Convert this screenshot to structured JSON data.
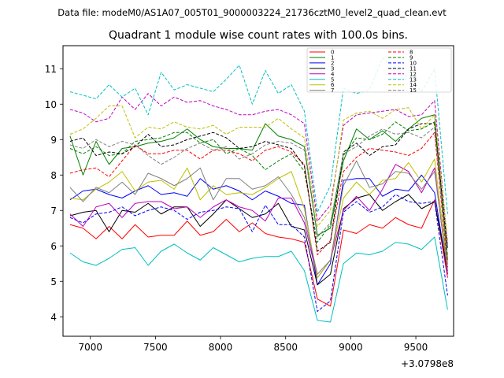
{
  "chart_data": {
    "type": "line",
    "suptitle": "Data file: modeM0/AS1A07_005T01_9000003224_21736cztM0_level2_quad_clean.evt",
    "title": "Quadrant 1 module wise count rates with 100.0s bins.",
    "xlabel": "",
    "ylabel": "",
    "x_offset_label": "+3.0798e8",
    "xlim": [
      6790,
      9790
    ],
    "ylim": [
      3.45,
      11.65
    ],
    "xticks": [
      7000,
      7500,
      8000,
      8500,
      9000,
      9500
    ],
    "yticks": [
      4,
      5,
      6,
      7,
      8,
      9,
      10,
      11
    ],
    "grid": false,
    "legend_position": "top-right",
    "x": [
      6844,
      6944,
      7044,
      7144,
      7244,
      7344,
      7444,
      7544,
      7644,
      7744,
      7844,
      7944,
      8044,
      8144,
      8244,
      8344,
      8444,
      8544,
      8644,
      8744,
      8844,
      8944,
      9044,
      9144,
      9244,
      9344,
      9444,
      9544,
      9644,
      9744
    ],
    "series": [
      {
        "name": "0",
        "color": "#ff0000",
        "dash": false,
        "values": [
          6.6,
          6.5,
          6.2,
          6.55,
          6.2,
          6.6,
          6.25,
          6.3,
          6.3,
          6.7,
          6.3,
          6.4,
          6.75,
          6.4,
          6.65,
          6.35,
          6.25,
          6.2,
          6.1,
          4.5,
          4.3,
          6.45,
          6.35,
          6.6,
          6.5,
          6.8,
          6.6,
          6.5,
          7.3,
          5.1
        ]
      },
      {
        "name": "1",
        "color": "#008000",
        "dash": false,
        "values": [
          9.1,
          8.0,
          8.95,
          8.3,
          8.75,
          8.8,
          8.9,
          8.95,
          9.05,
          9.3,
          9.0,
          8.8,
          8.75,
          8.75,
          8.7,
          9.45,
          9.1,
          9.0,
          8.8,
          6.3,
          6.5,
          8.4,
          9.3,
          9.0,
          9.25,
          8.95,
          9.3,
          9.6,
          9.7,
          5.6
        ]
      },
      {
        "name": "2",
        "color": "#0000ff",
        "dash": false,
        "values": [
          7.3,
          7.55,
          7.6,
          7.45,
          7.35,
          7.55,
          7.7,
          7.45,
          7.5,
          7.4,
          7.9,
          7.6,
          7.7,
          7.55,
          7.3,
          7.55,
          7.4,
          7.2,
          7.15,
          4.9,
          5.5,
          7.85,
          7.9,
          7.9,
          7.4,
          7.6,
          7.55,
          8.0,
          7.5,
          5.2
        ]
      },
      {
        "name": "3",
        "color": "#000000",
        "dash": false,
        "values": [
          6.85,
          6.95,
          7.0,
          6.4,
          7.0,
          6.95,
          7.2,
          6.9,
          7.1,
          7.1,
          6.55,
          6.9,
          7.3,
          7.05,
          6.8,
          6.9,
          7.2,
          6.55,
          6.45,
          4.9,
          5.2,
          7.05,
          7.35,
          7.45,
          7.0,
          7.25,
          7.45,
          7.05,
          7.25,
          5.3
        ]
      },
      {
        "name": "4",
        "color": "#bf00bf",
        "dash": false,
        "values": [
          6.9,
          6.55,
          7.1,
          7.2,
          6.8,
          7.2,
          7.25,
          7.25,
          7.05,
          7.1,
          6.8,
          7.1,
          7.3,
          7.1,
          7.0,
          6.7,
          7.35,
          7.35,
          6.65,
          5.1,
          5.6,
          7.0,
          7.4,
          7.0,
          7.6,
          8.3,
          8.1,
          7.5,
          8.2,
          5.2
        ]
      },
      {
        "name": "5",
        "color": "#00bfbf",
        "dash": false,
        "values": [
          5.8,
          5.55,
          5.45,
          5.65,
          5.9,
          5.95,
          5.45,
          5.85,
          6.05,
          5.8,
          5.6,
          5.95,
          5.75,
          5.55,
          5.65,
          5.7,
          5.7,
          5.85,
          5.3,
          3.9,
          3.85,
          5.5,
          5.8,
          5.75,
          5.85,
          6.1,
          6.05,
          5.9,
          6.25,
          4.2
        ]
      },
      {
        "name": "6",
        "color": "#bfbf00",
        "dash": false,
        "values": [
          7.35,
          7.3,
          7.6,
          7.8,
          8.1,
          7.55,
          7.8,
          7.85,
          7.6,
          8.2,
          7.3,
          7.7,
          7.45,
          7.5,
          7.45,
          7.65,
          7.9,
          8.1,
          7.05,
          5.1,
          5.6,
          7.35,
          7.8,
          7.45,
          7.85,
          7.9,
          8.35,
          7.8,
          8.45,
          5.4
        ]
      },
      {
        "name": "7",
        "color": "#808080",
        "dash": false,
        "values": [
          7.65,
          7.25,
          7.65,
          7.5,
          7.8,
          7.45,
          8.05,
          7.9,
          7.7,
          7.9,
          8.2,
          7.3,
          7.9,
          7.9,
          7.6,
          7.7,
          7.95,
          7.45,
          6.8,
          5.2,
          5.6,
          7.7,
          8.4,
          7.65,
          7.75,
          8.1,
          8.05,
          7.6,
          8.1,
          5.3
        ]
      },
      {
        "name": "8",
        "color": "#ff0000",
        "dash": true,
        "values": [
          8.05,
          8.15,
          8.2,
          7.95,
          8.4,
          8.85,
          8.6,
          8.6,
          8.7,
          8.7,
          8.45,
          8.7,
          8.7,
          8.6,
          8.4,
          8.7,
          8.8,
          8.65,
          8.3,
          5.75,
          6.15,
          8.1,
          8.5,
          8.75,
          8.7,
          8.65,
          8.55,
          8.75,
          9.2,
          5.4
        ]
      },
      {
        "name": "9",
        "color": "#008000",
        "dash": true,
        "values": [
          8.75,
          8.6,
          8.8,
          8.55,
          8.6,
          8.95,
          9.0,
          9.05,
          9.2,
          9.2,
          8.9,
          9.0,
          8.6,
          8.75,
          8.55,
          8.15,
          8.4,
          8.6,
          8.1,
          6.1,
          6.6,
          8.55,
          9.05,
          9.0,
          9.15,
          9.5,
          9.25,
          9.3,
          9.5,
          5.7
        ]
      },
      {
        "name": "10",
        "color": "#0000ff",
        "dash": true,
        "values": [
          6.8,
          6.65,
          6.9,
          6.95,
          7.1,
          6.85,
          7.0,
          7.1,
          7.0,
          6.75,
          6.95,
          7.0,
          7.1,
          7.05,
          6.4,
          7.15,
          6.6,
          6.6,
          6.25,
          4.15,
          4.45,
          6.95,
          7.25,
          6.95,
          7.1,
          7.45,
          7.25,
          7.2,
          7.25,
          4.6
        ]
      },
      {
        "name": "11",
        "color": "#000000",
        "dash": true,
        "values": [
          8.95,
          9.05,
          8.55,
          8.65,
          8.6,
          8.8,
          9.15,
          8.8,
          8.85,
          9.0,
          9.1,
          9.2,
          9.05,
          8.75,
          8.8,
          8.95,
          8.85,
          8.75,
          8.25,
          5.85,
          6.1,
          8.65,
          8.9,
          8.55,
          8.8,
          8.85,
          9.3,
          9.45,
          9.45,
          5.9
        ]
      },
      {
        "name": "12",
        "color": "#bf00bf",
        "dash": true,
        "values": [
          9.85,
          9.75,
          9.5,
          9.6,
          10.2,
          9.85,
          10.3,
          9.95,
          10.2,
          10.05,
          10.1,
          9.95,
          9.85,
          9.7,
          9.7,
          9.8,
          9.85,
          9.7,
          9.45,
          6.7,
          7.15,
          9.4,
          9.7,
          9.75,
          9.8,
          9.85,
          9.65,
          9.7,
          10.1,
          6.0
        ]
      },
      {
        "name": "13",
        "color": "#00bfbf",
        "dash": true,
        "values": [
          10.35,
          10.25,
          10.15,
          10.55,
          10.2,
          10.45,
          9.7,
          10.9,
          10.4,
          10.55,
          10.45,
          10.35,
          10.7,
          11.1,
          10.0,
          10.95,
          10.3,
          10.55,
          9.8,
          6.95,
          7.7,
          10.45,
          10.3,
          10.4,
          11.3,
          11.0,
          10.75,
          10.35,
          11.0,
          6.9
        ]
      },
      {
        "name": "14",
        "color": "#bfbf00",
        "dash": true,
        "values": [
          9.15,
          9.3,
          9.6,
          9.95,
          9.95,
          9.05,
          9.35,
          9.3,
          9.5,
          9.35,
          9.3,
          9.4,
          9.15,
          9.35,
          9.35,
          9.35,
          9.6,
          9.3,
          9.05,
          6.55,
          7.0,
          9.55,
          9.75,
          9.8,
          9.6,
          9.85,
          9.9,
          9.3,
          9.7,
          6.15
        ]
      },
      {
        "name": "15",
        "color": "#808080",
        "dash": true,
        "values": [
          8.85,
          8.75,
          9.0,
          8.8,
          8.95,
          8.85,
          8.55,
          8.3,
          8.5,
          8.75,
          8.9,
          8.7,
          8.8,
          8.45,
          8.6,
          8.85,
          8.95,
          8.9,
          8.7,
          6.25,
          6.65,
          8.6,
          8.8,
          9.1,
          9.3,
          9.15,
          9.2,
          9.05,
          9.35,
          5.5
        ]
      }
    ]
  }
}
